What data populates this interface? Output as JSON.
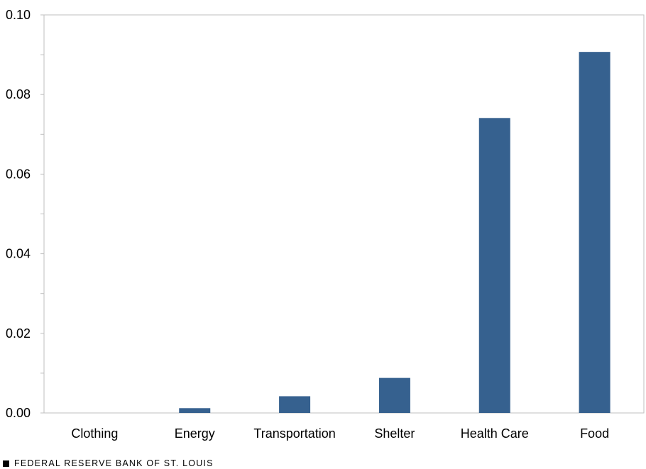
{
  "chart_data": {
    "type": "bar",
    "title": "",
    "xlabel": "",
    "ylabel": "",
    "categories": [
      "Clothing",
      "Energy",
      "Transportation",
      "Shelter",
      "Health Care",
      "Food"
    ],
    "values": [
      0.0,
      0.0012,
      0.0042,
      0.0088,
      0.0741,
      0.0907
    ],
    "ylim": [
      0,
      0.1
    ],
    "yticks": [
      "0.00",
      "0.02",
      "0.04",
      "0.06",
      "0.08",
      "0.10"
    ],
    "grid": false,
    "legend": "none"
  },
  "colors": {
    "bar": "#36618f",
    "axis": "#bfbfbf"
  },
  "footer": {
    "icon": "square-icon",
    "text": "FEDERAL RESERVE BANK OF ST. LOUIS"
  }
}
